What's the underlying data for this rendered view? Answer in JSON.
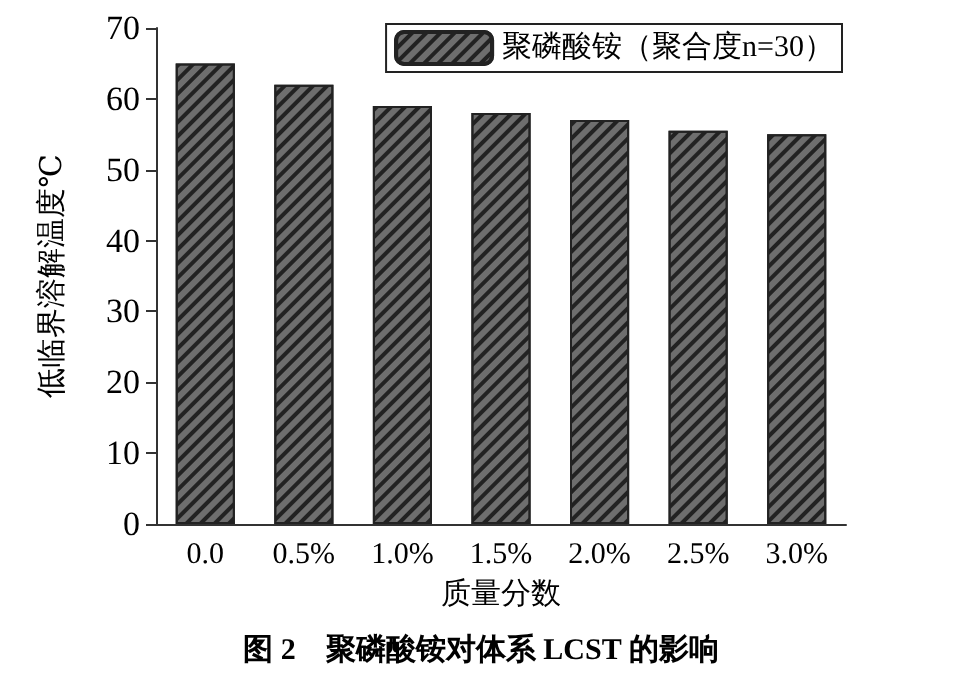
{
  "chart_data": {
    "type": "bar",
    "title": "图 2　聚磷酸铵对体系 LCST 的影响",
    "xlabel": "质量分数",
    "ylabel": "低临界溶解温度℃",
    "categories": [
      "0.0",
      "0.5%",
      "1.0%",
      "1.5%",
      "2.0%",
      "2.5%",
      "3.0%"
    ],
    "series": [
      {
        "name": "聚磷酸铵（聚合度n=30）",
        "color": "#6e6e6e",
        "values": [
          65,
          62,
          59,
          58,
          57,
          55.5,
          55
        ]
      }
    ],
    "ylim": [
      0,
      70
    ],
    "yticks": [
      0,
      10,
      20,
      30,
      40,
      50,
      60,
      70
    ],
    "grid": false,
    "legend": "top right"
  }
}
